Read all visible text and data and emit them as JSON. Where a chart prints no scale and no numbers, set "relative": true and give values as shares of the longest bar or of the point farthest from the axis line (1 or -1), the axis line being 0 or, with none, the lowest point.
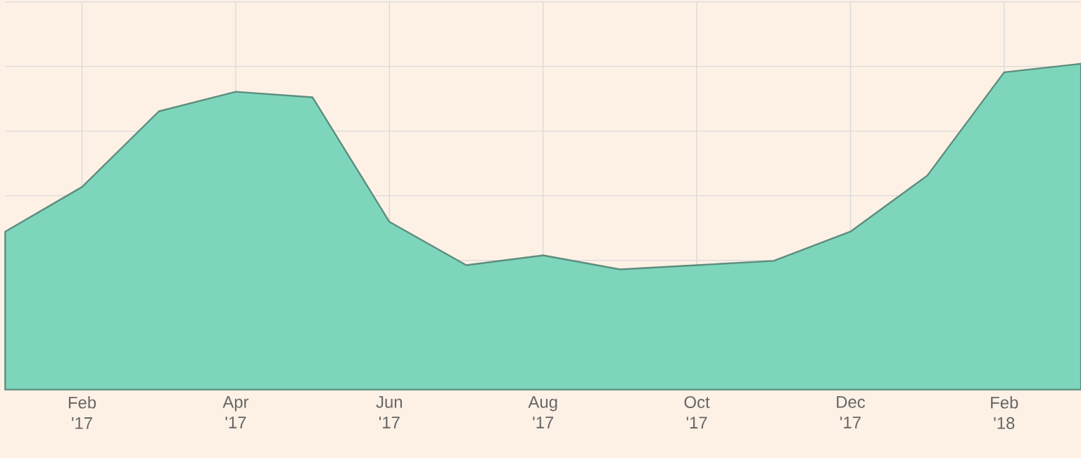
{
  "chart_data": {
    "type": "area",
    "relative": true,
    "grid": true,
    "categories": [
      null,
      "Feb '17",
      null,
      "Apr '17",
      null,
      "Jun '17",
      null,
      "Aug '17",
      null,
      "Oct '17",
      null,
      "Dec '17",
      null,
      "Feb '18",
      null
    ],
    "series": [
      {
        "color": "#7dd6bb",
        "values": [
          0.485,
          0.622,
          0.854,
          0.914,
          0.897,
          0.515,
          0.382,
          0.412,
          0.369,
          0.382,
          0.395,
          0.485,
          0.657,
          0.974,
          1
        ]
      }
    ]
  }
}
